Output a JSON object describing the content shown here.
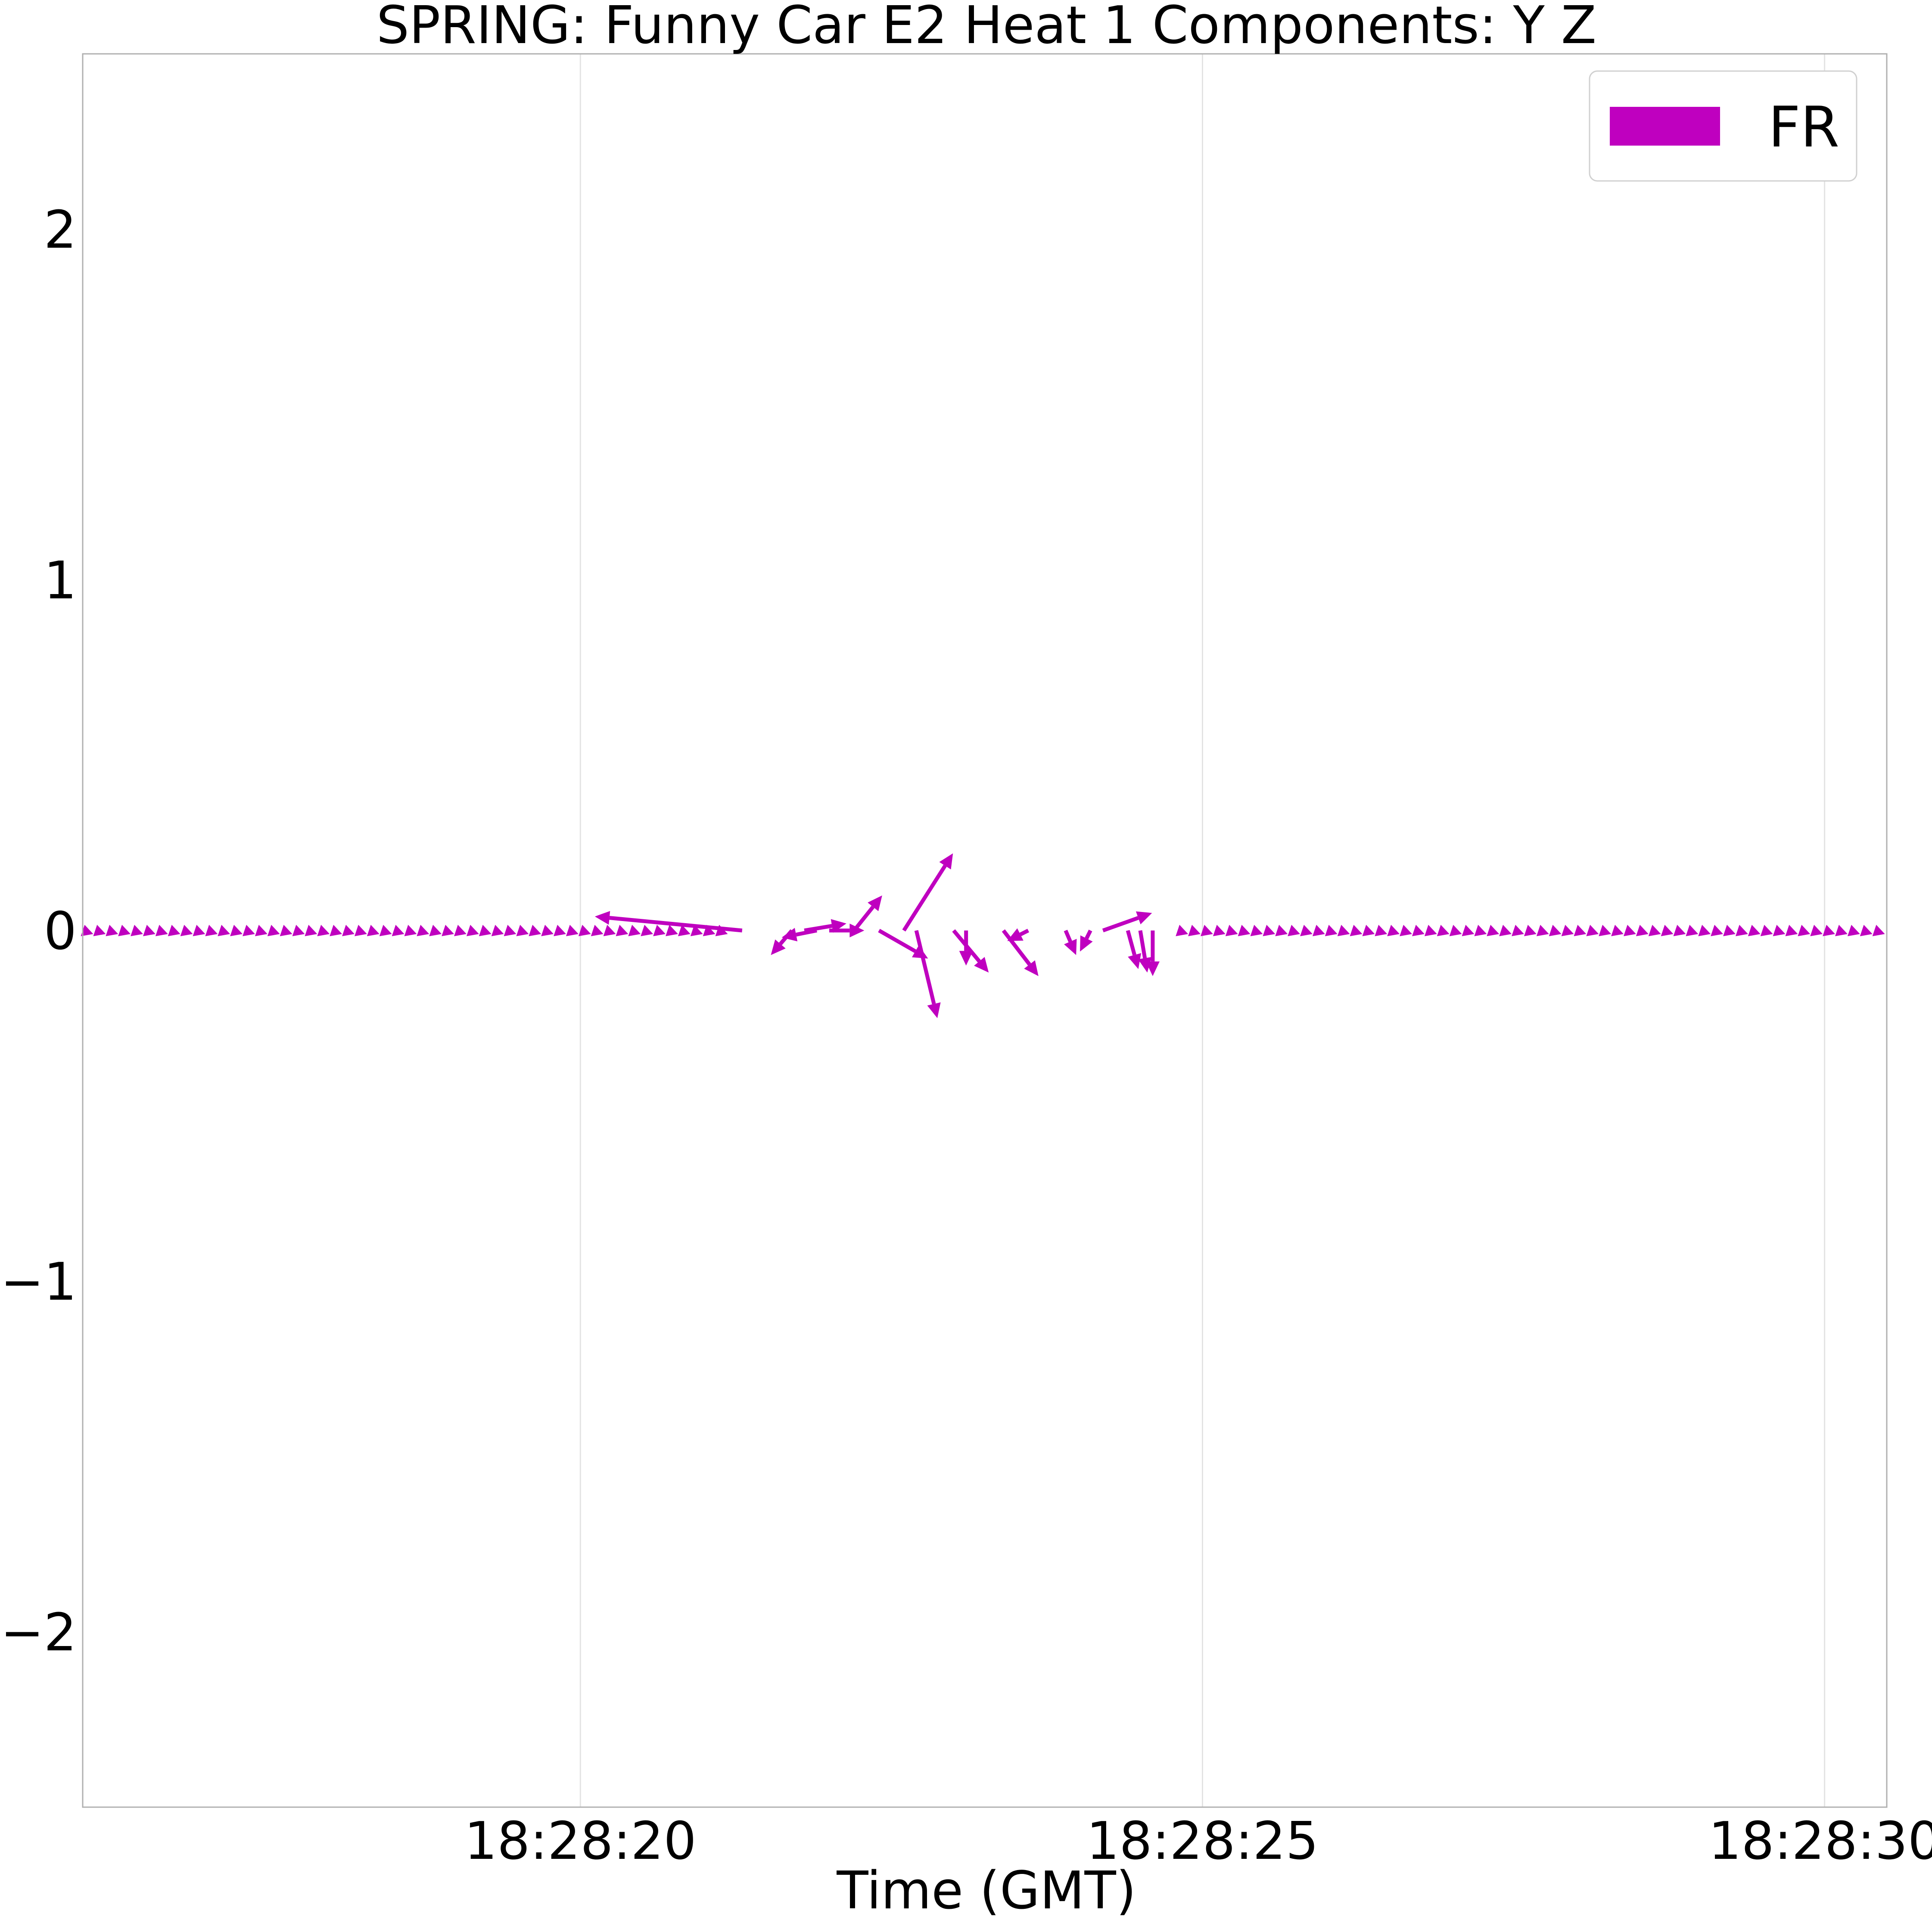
{
  "chart_data": {
    "type": "quiver",
    "title": "SPRING: Funny Car E2 Heat 1 Components: Y Z",
    "xlabel": "Time (GMT)",
    "ylabel": "",
    "xlim": [
      "18:28:16",
      "18:28:30.5"
    ],
    "ylim": [
      -2.5,
      2.5
    ],
    "x_ticks": [
      {
        "time": "18:28:20",
        "label": "18:28:20"
      },
      {
        "time": "18:28:25",
        "label": "18:28:25"
      },
      {
        "time": "18:28:30",
        "label": "18:28:30"
      }
    ],
    "y_ticks": [
      {
        "value": -2,
        "label": "−2"
      },
      {
        "value": -1,
        "label": "−1"
      },
      {
        "value": 0,
        "label": "0"
      },
      {
        "value": 1,
        "label": "1"
      },
      {
        "value": 2,
        "label": "2"
      }
    ],
    "grid": {
      "x": true,
      "y": false
    },
    "legend": {
      "position": "top-right",
      "entries": [
        {
          "label": "FR",
          "color": "#bf00bf"
        }
      ]
    },
    "series": [
      {
        "name": "FR",
        "color": "#bf00bf",
        "sample_interval_s": 0.1,
        "baseline": {
          "start": "18:28:16",
          "end": "18:28:30.4",
          "u": 0.03,
          "v": -0.01
        },
        "disturbed_vectors": [
          {
            "t": "18:28:21.3",
            "u": -0.42,
            "v": 0.04
          },
          {
            "t": "18:28:21.7",
            "u": -0.06,
            "v": -0.07
          },
          {
            "t": "18:28:21.8",
            "u": 0.12,
            "v": 0.02
          },
          {
            "t": "18:28:21.9",
            "u": -0.1,
            "v": -0.02
          },
          {
            "t": "18:28:22.0",
            "u": 0.1,
            "v": 0.0
          },
          {
            "t": "18:28:22.2",
            "u": 0.08,
            "v": 0.1
          },
          {
            "t": "18:28:22.4",
            "u": 0.14,
            "v": -0.08
          },
          {
            "t": "18:28:22.6",
            "u": 0.14,
            "v": 0.22
          },
          {
            "t": "18:28:22.7",
            "u": 0.06,
            "v": -0.25
          },
          {
            "t": "18:28:23.0",
            "u": 0.1,
            "v": -0.12
          },
          {
            "t": "18:28:23.1",
            "u": 0.0,
            "v": -0.1
          },
          {
            "t": "18:28:23.4",
            "u": 0.1,
            "v": -0.13
          },
          {
            "t": "18:28:23.6",
            "u": -0.06,
            "v": -0.03
          },
          {
            "t": "18:28:23.9",
            "u": 0.03,
            "v": -0.07
          },
          {
            "t": "18:28:24.1",
            "u": -0.03,
            "v": -0.06
          },
          {
            "t": "18:28:24.2",
            "u": 0.14,
            "v": 0.05
          },
          {
            "t": "18:28:24.4",
            "u": 0.03,
            "v": -0.11
          },
          {
            "t": "18:28:24.5",
            "u": 0.02,
            "v": -0.12
          },
          {
            "t": "18:28:24.6",
            "u": 0.0,
            "v": -0.13
          }
        ]
      }
    ]
  }
}
